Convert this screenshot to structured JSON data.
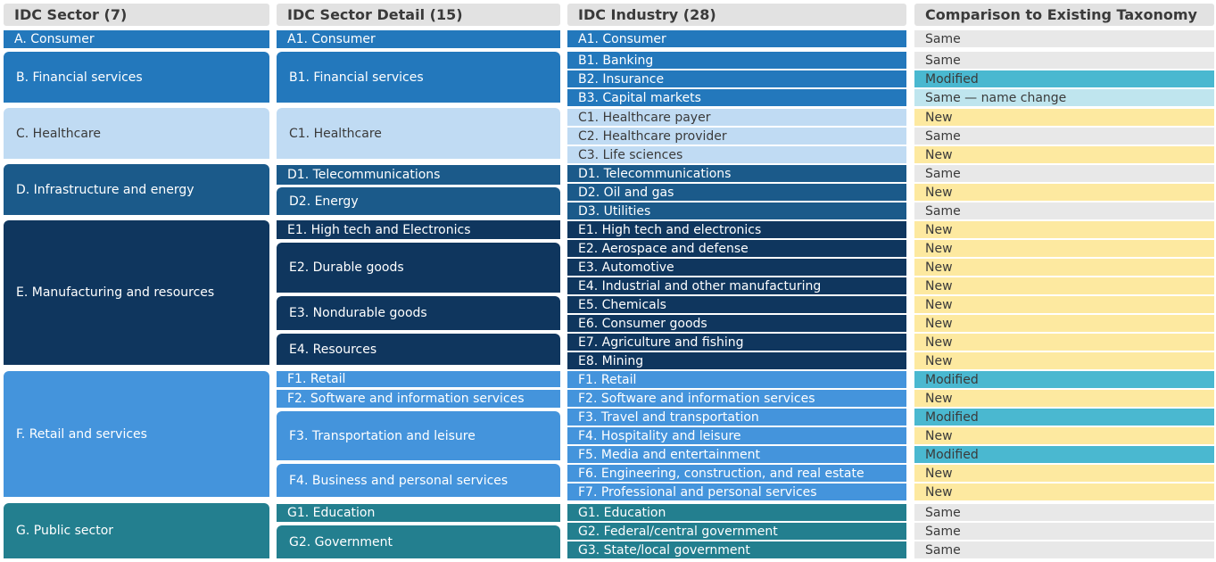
{
  "headers": {
    "sector": "IDC Sector (7)",
    "detail": "IDC Sector Detail (15)",
    "industry": "IDC Industry (28)",
    "comparison": "Comparison to Existing Taxonomy"
  },
  "colors": {
    "A": "#2378bc",
    "B": "#2378bc",
    "C": "#c0dbf3",
    "D": "#1b5a8a",
    "E": "#0f365e",
    "F": "#4494dc",
    "G": "#237f8f",
    "Same": "#e8e8e8",
    "Modified": "#4ab8d0",
    "Same — name change": "#bfe5ee",
    "New": "#fde9a0"
  },
  "sectors": [
    {
      "group": "A",
      "label": "A. Consumer"
    },
    {
      "group": "B",
      "label": "B. Financial services"
    },
    {
      "group": "C",
      "label": "C. Healthcare"
    },
    {
      "group": "D",
      "label": "D. Infrastructure and energy"
    },
    {
      "group": "E",
      "label": "E. Manufacturing and resources"
    },
    {
      "group": "F",
      "label": "F. Retail and services"
    },
    {
      "group": "G",
      "label": "G. Public sector"
    }
  ],
  "details": [
    {
      "group": "A",
      "label": "A1. Consumer"
    },
    {
      "group": "B",
      "label": "B1. Financial services"
    },
    {
      "group": "C",
      "label": "C1. Healthcare"
    },
    {
      "group": "D",
      "label": "D1. Telecommunications"
    },
    {
      "group": "D",
      "label": "D2. Energy"
    },
    {
      "group": "E",
      "label": "E1. High tech and Electronics"
    },
    {
      "group": "E",
      "label": "E2. Durable goods"
    },
    {
      "group": "E",
      "label": "E3. Nondurable goods"
    },
    {
      "group": "E",
      "label": "E4. Resources"
    },
    {
      "group": "F",
      "label": "F1. Retail"
    },
    {
      "group": "F",
      "label": "F2. Software and information services"
    },
    {
      "group": "F",
      "label": "F3. Transportation and leisure"
    },
    {
      "group": "F",
      "label": "F4. Business and personal services"
    },
    {
      "group": "G",
      "label": "G1. Education"
    },
    {
      "group": "G",
      "label": "G2. Government"
    }
  ],
  "industries": [
    {
      "group": "A",
      "label": "A1. Consumer",
      "comparison": "Same"
    },
    {
      "group": "B",
      "label": "B1. Banking",
      "comparison": "Same"
    },
    {
      "group": "B",
      "label": "B2. Insurance",
      "comparison": "Modified"
    },
    {
      "group": "B",
      "label": "B3. Capital markets",
      "comparison": "Same — name change"
    },
    {
      "group": "C",
      "label": "C1. Healthcare payer",
      "comparison": "New"
    },
    {
      "group": "C",
      "label": "C2. Healthcare provider",
      "comparison": "Same"
    },
    {
      "group": "C",
      "label": "C3. Life sciences",
      "comparison": "New"
    },
    {
      "group": "D",
      "label": "D1. Telecommunications",
      "comparison": "Same"
    },
    {
      "group": "D",
      "label": "D2. Oil and gas",
      "comparison": "New"
    },
    {
      "group": "D",
      "label": "D3. Utilities",
      "comparison": "Same"
    },
    {
      "group": "E",
      "label": "E1. High tech and electronics",
      "comparison": "New"
    },
    {
      "group": "E",
      "label": "E2. Aerospace and defense",
      "comparison": "New"
    },
    {
      "group": "E",
      "label": "E3. Automotive",
      "comparison": "New"
    },
    {
      "group": "E",
      "label": "E4. Industrial and other manufacturing",
      "comparison": "New"
    },
    {
      "group": "E",
      "label": "E5. Chemicals",
      "comparison": "New"
    },
    {
      "group": "E",
      "label": "E6. Consumer goods",
      "comparison": "New"
    },
    {
      "group": "E",
      "label": "E7. Agriculture and fishing",
      "comparison": "New"
    },
    {
      "group": "E",
      "label": "E8. Mining",
      "comparison": "New"
    },
    {
      "group": "F",
      "label": "F1. Retail",
      "comparison": "Modified"
    },
    {
      "group": "F",
      "label": "F2. Software and information services",
      "comparison": "New"
    },
    {
      "group": "F",
      "label": "F3. Travel and transportation",
      "comparison": "Modified"
    },
    {
      "group": "F",
      "label": "F4. Hospitality and leisure",
      "comparison": "New"
    },
    {
      "group": "F",
      "label": "F5. Media and entertainment",
      "comparison": "Modified"
    },
    {
      "group": "F",
      "label": "F6. Engineering, construction, and real estate",
      "comparison": "New"
    },
    {
      "group": "F",
      "label": "F7. Professional and personal services",
      "comparison": "New"
    },
    {
      "group": "G",
      "label": "G1. Education",
      "comparison": "Same"
    },
    {
      "group": "G",
      "label": "G2. Federal/central government",
      "comparison": "Same"
    },
    {
      "group": "G",
      "label": "G3. State/local government",
      "comparison": "Same"
    }
  ]
}
